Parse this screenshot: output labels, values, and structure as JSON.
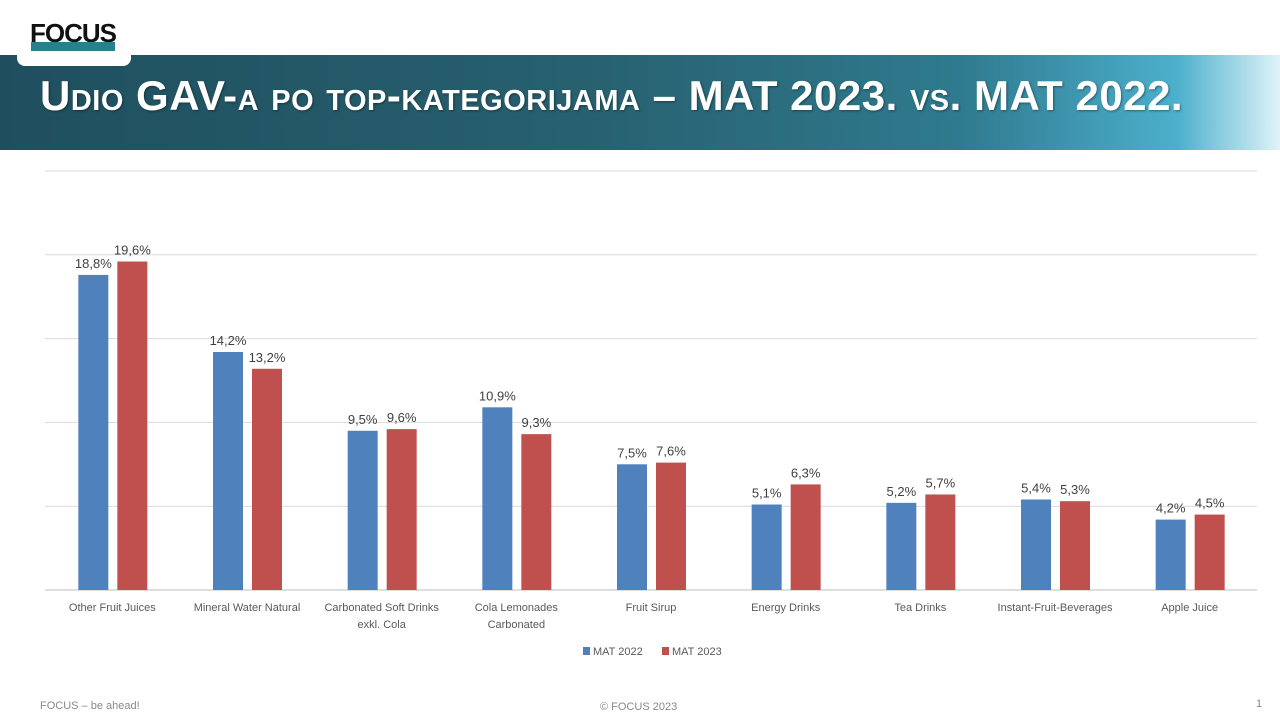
{
  "logo_text": "FOCUS",
  "title": "Udio GAV-a po top-kategorijama – MAT 2023. vs. MAT 2022.",
  "chart_data": {
    "type": "bar",
    "title": "Udio GAV-a po top-kategorijama – MAT 2023. vs. MAT 2022.",
    "categories": [
      [
        "Other Fruit Juices"
      ],
      [
        "Mineral Water Natural"
      ],
      [
        "Carbonated Soft Drinks",
        "exkl. Cola"
      ],
      [
        "Cola Lemonades",
        "Carbonated"
      ],
      [
        "Fruit Sirup"
      ],
      [
        "Energy Drinks"
      ],
      [
        "Tea Drinks"
      ],
      [
        "Instant-Fruit-Beverages"
      ],
      [
        "Apple Juice"
      ]
    ],
    "series": [
      {
        "name": "MAT 2022",
        "color": "#4f81bd",
        "values": [
          18.8,
          14.2,
          9.5,
          10.9,
          7.5,
          5.1,
          5.2,
          5.4,
          4.2
        ],
        "labels": [
          "18,8%",
          "14,2%",
          "9,5%",
          "10,9%",
          "7,5%",
          "5,1%",
          "5,2%",
          "5,4%",
          "4,2%"
        ]
      },
      {
        "name": "MAT 2023",
        "color": "#c0504d",
        "values": [
          19.6,
          13.2,
          9.6,
          9.3,
          7.6,
          6.3,
          5.7,
          5.3,
          4.5
        ],
        "labels": [
          "19,6%",
          "13,2%",
          "9,6%",
          "9,3%",
          "7,6%",
          "6,3%",
          "5,7%",
          "5,3%",
          "4,5%"
        ]
      }
    ],
    "ylim": [
      0,
      25
    ],
    "yticks": [
      0,
      5,
      10,
      15,
      20,
      25
    ],
    "grid": true,
    "legend": "bottom",
    "xlabel": "",
    "ylabel": ""
  },
  "footer": {
    "left": "FOCUS – be ahead!",
    "center": "© FOCUS 2023",
    "page": "1"
  }
}
